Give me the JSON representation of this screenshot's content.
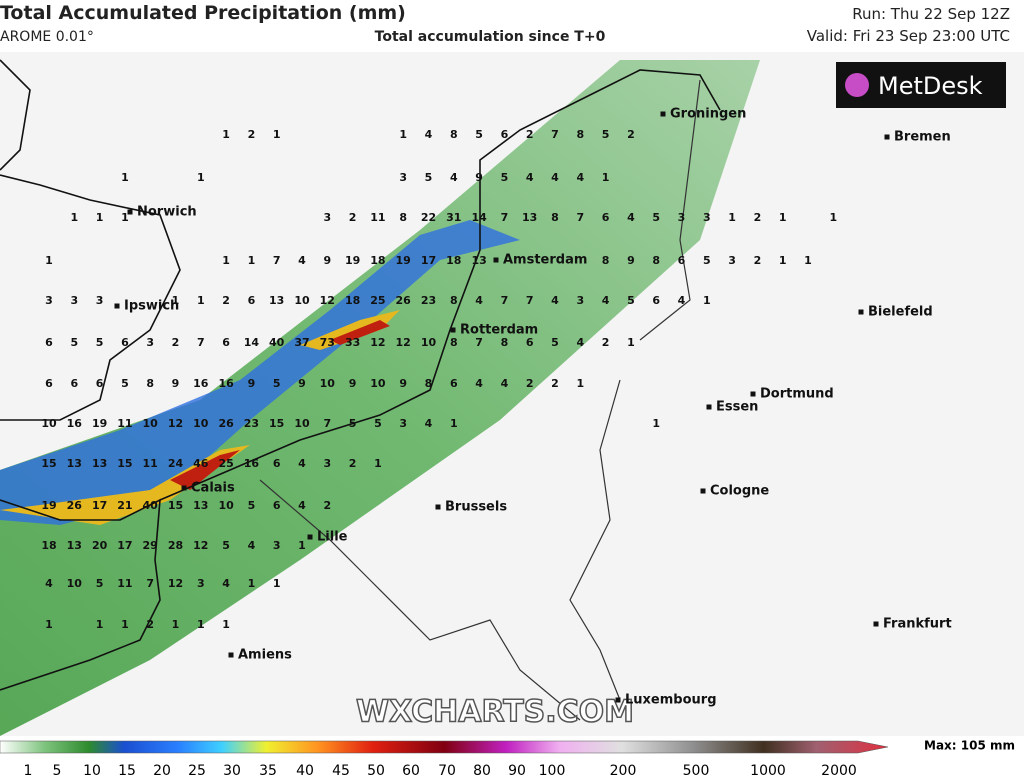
{
  "header": {
    "title": "Total Accumulated Precipitation (mm)",
    "model": "AROME 0.01°",
    "subtitle": "Total accumulation since T+0",
    "run": "Run: Thu 22 Sep 12Z",
    "valid": "Valid: Fri 23 Sep 23:00 UTC"
  },
  "logo": "MetDesk",
  "watermark": "WXCHARTS.COM",
  "cities": [
    "Groningen",
    "Bremen",
    "Norwich",
    "Amsterdam",
    "Ipswich",
    "Bielefeld",
    "Rotterdam",
    "Dortmund",
    "Essen",
    "Calais",
    "Cologne",
    "Brussels",
    "Lille",
    "Frankfurt",
    "Amiens",
    "Luxembourg"
  ],
  "grid": [
    [
      null,
      null,
      null,
      null,
      null,
      null,
      null,
      1,
      2,
      1,
      null,
      null,
      null,
      null,
      1,
      4,
      8,
      5,
      6,
      2,
      7,
      8,
      5,
      2,
      null,
      null,
      null,
      null,
      null,
      null,
      null,
      null
    ],
    [
      null,
      null,
      null,
      1,
      null,
      null,
      1,
      null,
      null,
      null,
      null,
      null,
      null,
      null,
      3,
      5,
      4,
      9,
      5,
      4,
      4,
      4,
      1,
      null,
      null,
      null,
      null,
      null,
      null,
      null,
      null,
      null
    ],
    [
      null,
      1,
      1,
      1,
      null,
      null,
      null,
      null,
      null,
      null,
      null,
      3,
      2,
      11,
      8,
      22,
      31,
      14,
      7,
      13,
      8,
      7,
      6,
      4,
      5,
      3,
      3,
      1,
      2,
      1,
      null,
      1
    ],
    [
      1,
      null,
      null,
      null,
      null,
      null,
      null,
      1,
      1,
      7,
      4,
      9,
      19,
      18,
      19,
      17,
      18,
      13,
      null,
      null,
      null,
      null,
      8,
      9,
      8,
      6,
      5,
      3,
      2,
      1,
      1,
      null
    ],
    [
      3,
      3,
      3,
      null,
      null,
      1,
      1,
      2,
      6,
      13,
      10,
      12,
      18,
      25,
      26,
      23,
      8,
      4,
      7,
      7,
      4,
      3,
      4,
      5,
      6,
      4,
      1,
      null,
      null,
      null,
      null,
      null
    ],
    [
      6,
      5,
      5,
      6,
      3,
      2,
      7,
      6,
      14,
      40,
      37,
      73,
      33,
      12,
      12,
      10,
      8,
      7,
      8,
      6,
      5,
      4,
      2,
      1,
      null,
      null,
      null,
      null,
      null,
      null,
      null,
      null
    ],
    [
      6,
      6,
      6,
      5,
      8,
      9,
      16,
      16,
      9,
      5,
      9,
      10,
      9,
      10,
      9,
      8,
      6,
      4,
      4,
      2,
      2,
      1,
      null,
      null,
      null,
      null,
      null,
      null,
      null,
      null,
      null,
      null
    ],
    [
      10,
      16,
      19,
      11,
      10,
      12,
      10,
      26,
      23,
      15,
      10,
      7,
      5,
      5,
      3,
      4,
      1,
      null,
      null,
      null,
      null,
      null,
      null,
      null,
      1,
      null,
      null,
      null,
      null,
      null,
      null,
      null
    ],
    [
      15,
      13,
      13,
      15,
      11,
      24,
      46,
      25,
      16,
      6,
      4,
      3,
      2,
      1,
      null,
      null,
      null,
      null,
      null,
      null,
      null,
      null,
      null,
      null,
      null,
      null,
      null,
      null,
      null,
      null,
      null,
      null
    ],
    [
      19,
      26,
      17,
      21,
      40,
      15,
      13,
      10,
      5,
      6,
      4,
      2,
      null,
      null,
      null,
      null,
      null,
      null,
      null,
      null,
      null,
      null,
      null,
      null,
      null,
      null,
      null,
      null,
      null,
      null,
      null,
      null
    ],
    [
      18,
      13,
      20,
      17,
      29,
      28,
      12,
      5,
      4,
      3,
      1,
      null,
      null,
      null,
      null,
      null,
      null,
      null,
      null,
      null,
      null,
      null,
      null,
      null,
      null,
      null,
      null,
      null,
      null,
      null,
      null,
      null
    ],
    [
      4,
      10,
      5,
      11,
      7,
      12,
      3,
      4,
      1,
      1,
      null,
      null,
      null,
      null,
      null,
      null,
      null,
      null,
      null,
      null,
      null,
      null,
      null,
      null,
      null,
      null,
      null,
      null,
      null,
      null,
      null,
      null
    ],
    [
      1,
      null,
      1,
      1,
      2,
      1,
      1,
      1,
      null,
      null,
      null,
      null,
      null,
      null,
      null,
      null,
      null,
      null,
      null,
      null,
      null,
      null,
      null,
      null,
      null,
      null,
      null,
      null,
      null,
      null,
      null,
      null
    ]
  ],
  "legend": {
    "ticks": [
      1,
      5,
      10,
      15,
      20,
      25,
      30,
      35,
      40,
      45,
      50,
      60,
      70,
      80,
      90,
      100,
      200,
      500,
      1000,
      2000
    ],
    "max": "Max: 105 mm"
  }
}
